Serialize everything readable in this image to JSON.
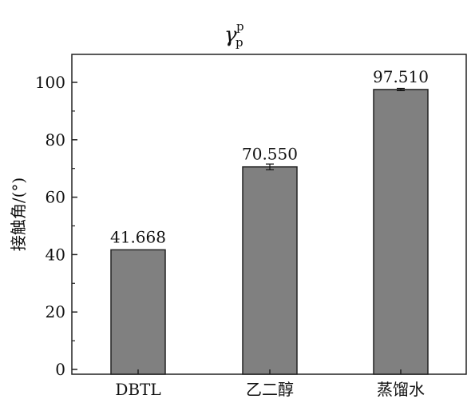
{
  "chart_data": {
    "type": "bar",
    "title": {
      "symbol": "γ",
      "superscript": "p",
      "subscript": "p"
    },
    "ylabel": "接触角/(°)",
    "xlabel": "",
    "categories": [
      "DBTL",
      "乙二醇",
      "蒸馏水"
    ],
    "values": [
      41.668,
      70.55,
      97.51
    ],
    "value_labels": [
      "41.668",
      "70.550",
      "97.510"
    ],
    "errors": [
      0,
      1.0,
      0.4
    ],
    "ylim": [
      0,
      110
    ],
    "yticks": [
      0,
      20,
      40,
      60,
      80,
      100
    ],
    "ytick_labels": [
      "0",
      "20",
      "40",
      "60",
      "80",
      "100"
    ],
    "bar_color": "#808080",
    "grid": false,
    "legend": "none"
  }
}
